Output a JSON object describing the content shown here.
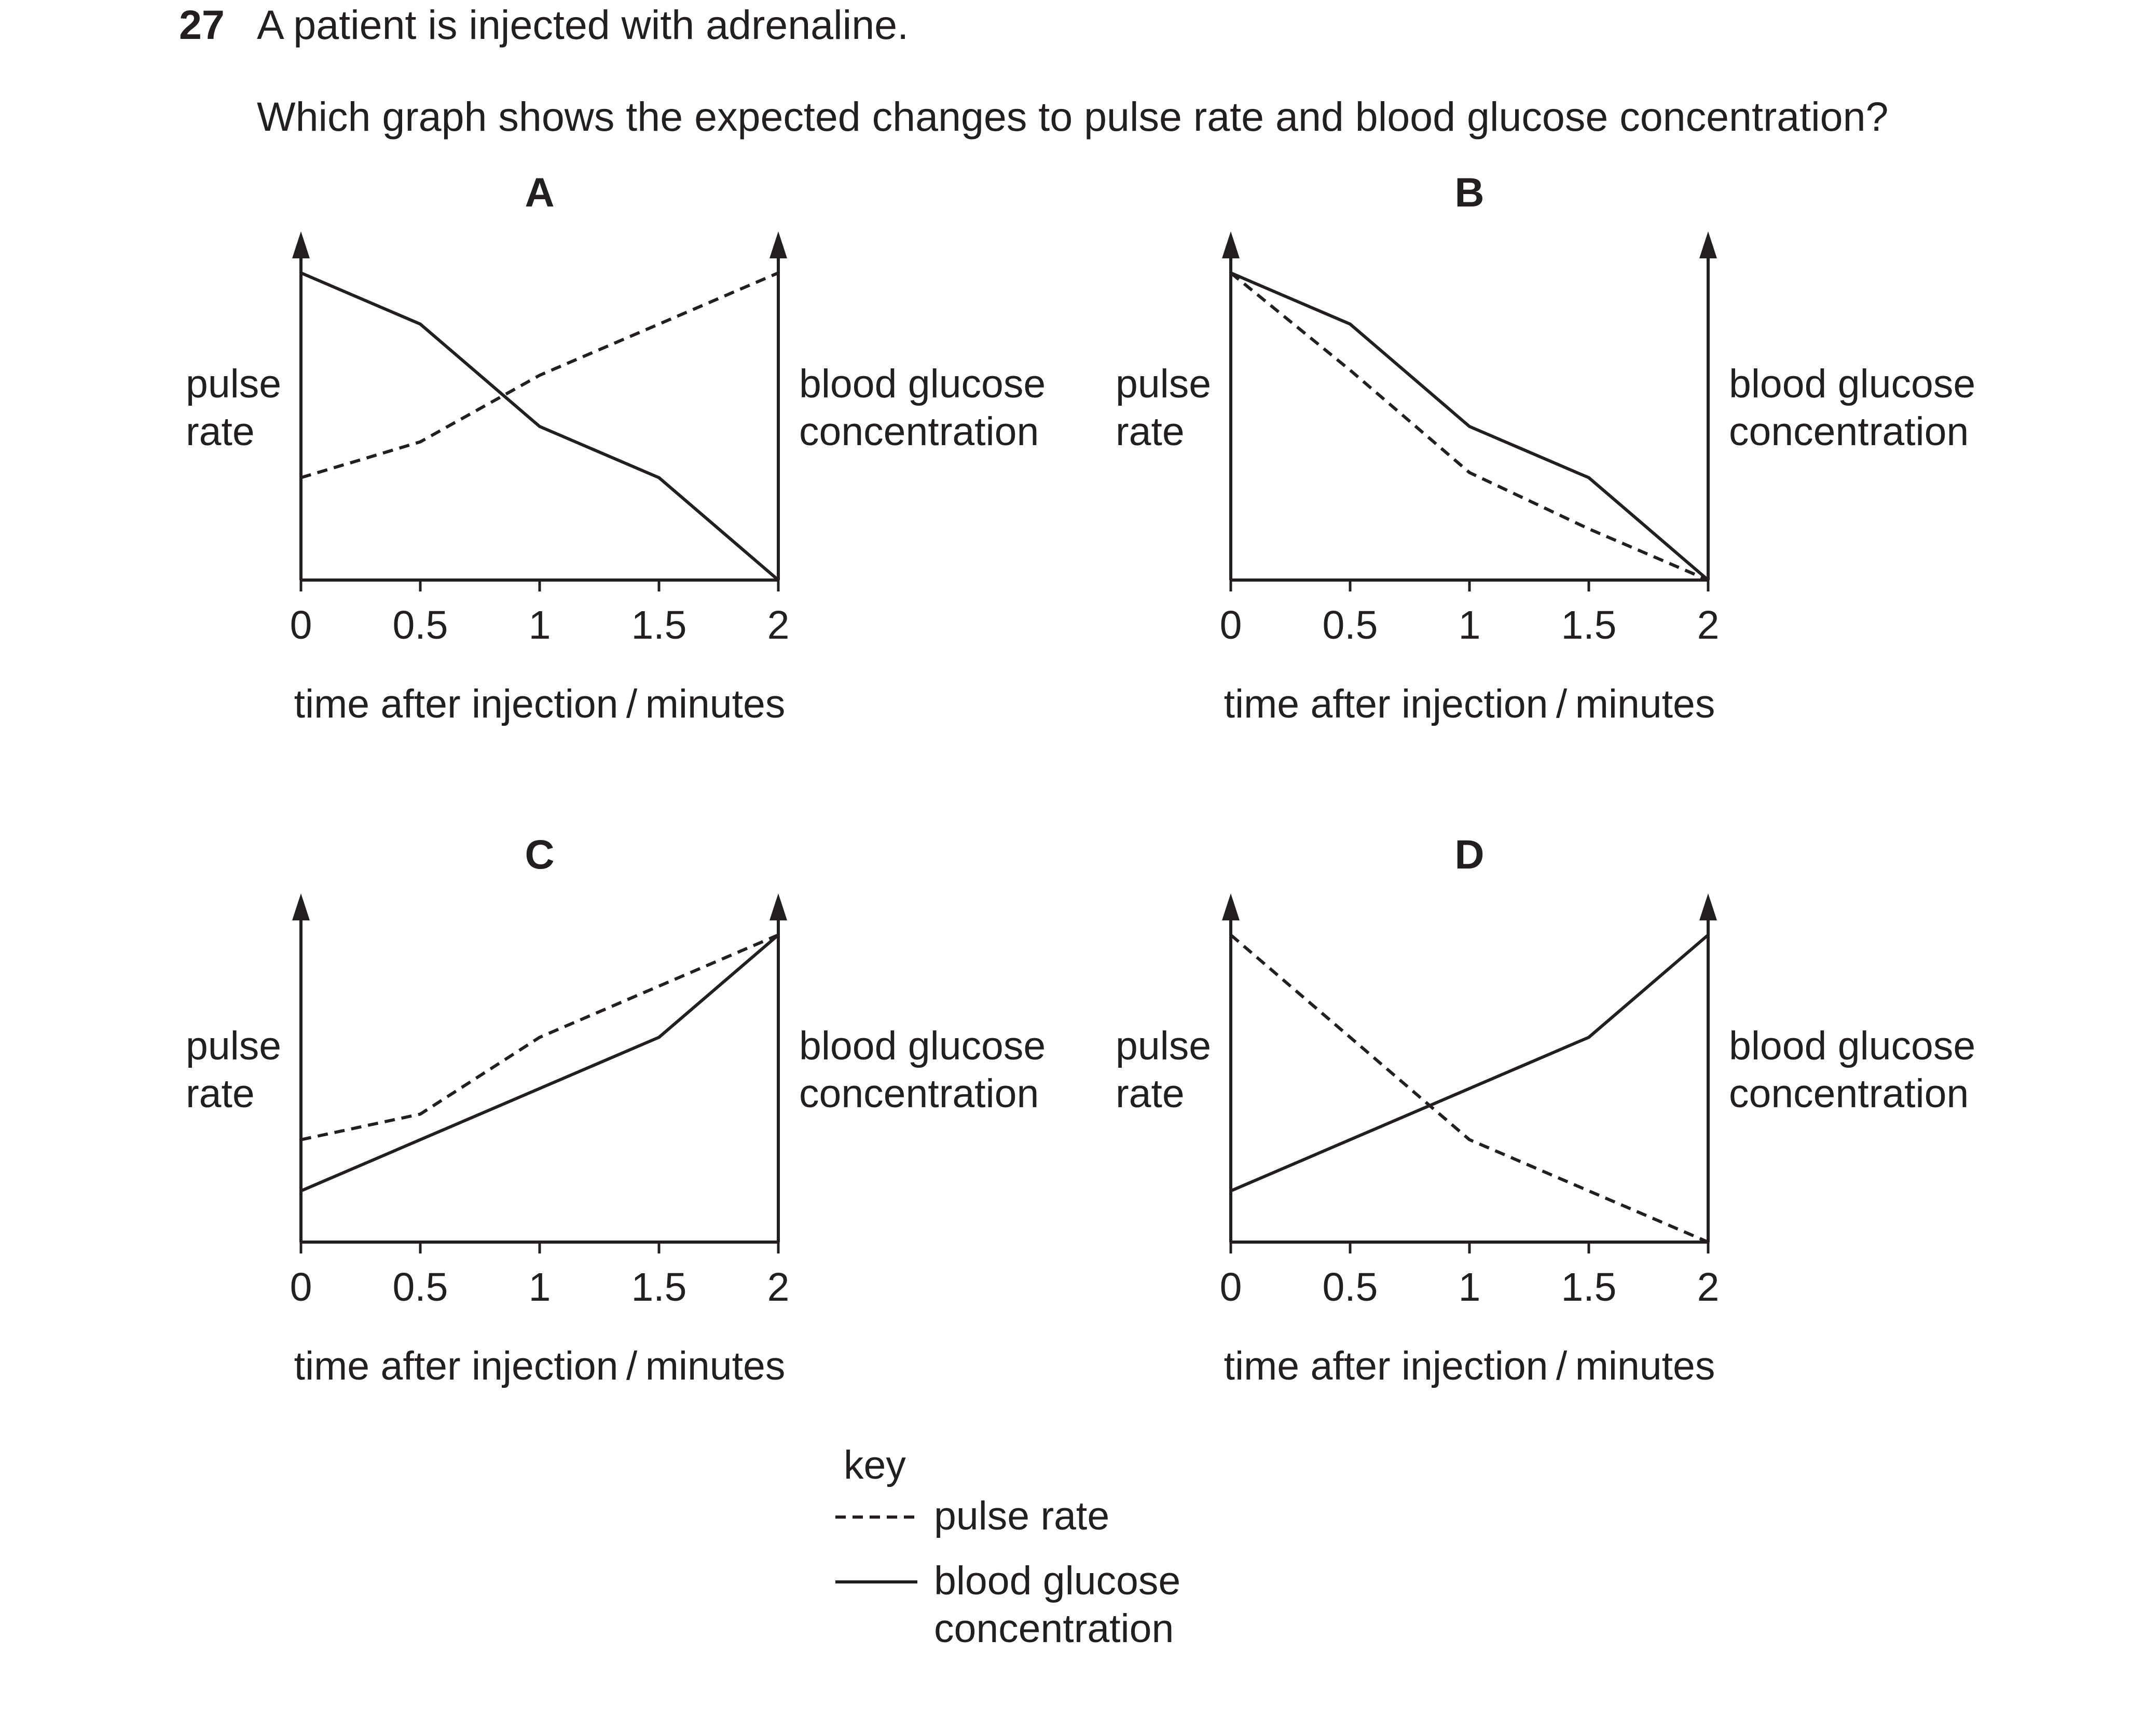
{
  "question": {
    "number": "27",
    "stem": "A patient is injected with adrenaline.",
    "prompt": "Which graph shows the expected changes to pulse rate and blood glucose concentration?"
  },
  "axis_text": {
    "left_line1": "pulse",
    "left_line2": "rate",
    "right_line1": "blood glucose",
    "right_line2": "concentration",
    "x_label": "time after injection / minutes"
  },
  "key": {
    "title": "key",
    "dashed_label": "pulse rate",
    "solid_label_line1": "blood glucose",
    "solid_label_line2": "concentration"
  },
  "colors": {
    "ink": "#231f20",
    "background": "#ffffff"
  },
  "chart_data": [
    {
      "type": "line",
      "title": "A",
      "x": [
        0,
        0.5,
        1,
        1.5,
        2
      ],
      "xlim": [
        0,
        2
      ],
      "ylim": [
        0,
        6
      ],
      "ylabel_left": "pulse rate",
      "ylabel_right": "blood glucose concentration",
      "series": [
        {
          "name": "pulse rate",
          "style": "dashed",
          "values": [
            2,
            2.7,
            4,
            5,
            6
          ]
        },
        {
          "name": "blood glucose concentration",
          "style": "solid",
          "values": [
            6,
            5,
            3,
            2,
            0
          ]
        }
      ]
    },
    {
      "type": "line",
      "title": "B",
      "x": [
        0,
        0.5,
        1,
        1.5,
        2
      ],
      "xlim": [
        0,
        2
      ],
      "ylim": [
        0,
        6
      ],
      "ylabel_left": "pulse rate",
      "ylabel_right": "blood glucose concentration",
      "series": [
        {
          "name": "pulse rate",
          "style": "dashed",
          "values": [
            6,
            4.1,
            2.1,
            1,
            0
          ]
        },
        {
          "name": "blood glucose concentration",
          "style": "solid",
          "values": [
            6,
            5,
            3,
            2,
            0
          ]
        }
      ]
    },
    {
      "type": "line",
      "title": "C",
      "x": [
        0,
        0.5,
        1,
        1.5,
        2
      ],
      "xlim": [
        0,
        2
      ],
      "ylim": [
        0,
        6
      ],
      "ylabel_left": "pulse rate",
      "ylabel_right": "blood glucose concentration",
      "series": [
        {
          "name": "pulse rate",
          "style": "dashed",
          "values": [
            2,
            2.5,
            4,
            5,
            6
          ]
        },
        {
          "name": "blood glucose concentration",
          "style": "solid",
          "values": [
            1,
            2,
            3,
            4,
            6
          ]
        }
      ]
    },
    {
      "type": "line",
      "title": "D",
      "x": [
        0,
        0.5,
        1,
        1.5,
        2
      ],
      "xlim": [
        0,
        2
      ],
      "ylim": [
        0,
        6
      ],
      "ylabel_left": "pulse rate",
      "ylabel_right": "blood glucose concentration",
      "series": [
        {
          "name": "pulse rate",
          "style": "dashed",
          "values": [
            6,
            4,
            2,
            1,
            0
          ]
        },
        {
          "name": "blood glucose concentration",
          "style": "solid",
          "values": [
            1,
            2,
            3,
            4,
            6
          ]
        }
      ]
    }
  ]
}
